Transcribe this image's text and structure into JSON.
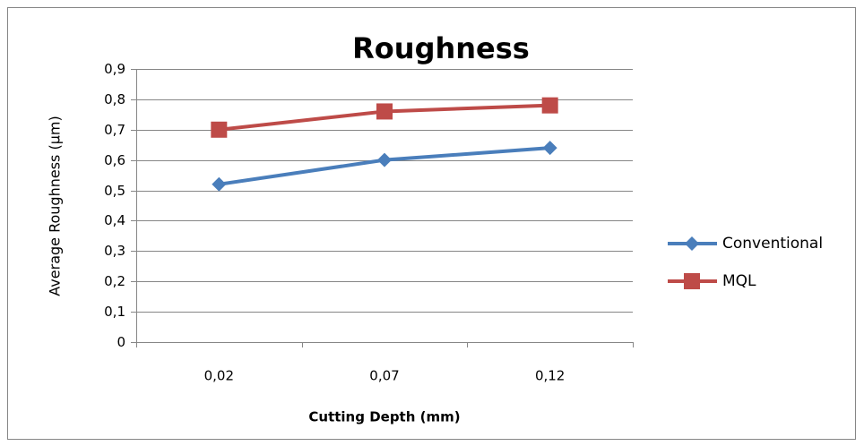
{
  "chart_data": {
    "type": "line",
    "title": "Roughness",
    "x_label": "Cutting Depth (mm)",
    "y_label": "Average Roughness (µm)",
    "categories": [
      "0,02",
      "0,07",
      "0,12"
    ],
    "series": [
      {
        "name": "Conventional",
        "color": "#4a7ebb",
        "marker": "diamond",
        "values": [
          0.52,
          0.6,
          0.64
        ]
      },
      {
        "name": "MQL",
        "color": "#be4b48",
        "marker": "square",
        "values": [
          0.7,
          0.76,
          0.78
        ]
      }
    ],
    "ylim": [
      0,
      0.9
    ],
    "yticks": [
      0,
      {
        "value": 0.1,
        "label": "0,1"
      },
      {
        "value": 0.2,
        "label": "0,2"
      },
      {
        "value": 0.3,
        "label": "0,3"
      },
      {
        "value": 0.4,
        "label": "0,4"
      },
      {
        "value": 0.5,
        "label": "0,5"
      },
      {
        "value": 0.6,
        "label": "0,6"
      },
      {
        "value": 0.7,
        "label": "0,7"
      },
      {
        "value": 0.8,
        "label": "0,8"
      },
      {
        "value": 0.9,
        "label": "0,9"
      }
    ],
    "grid": true,
    "legend": "right"
  }
}
